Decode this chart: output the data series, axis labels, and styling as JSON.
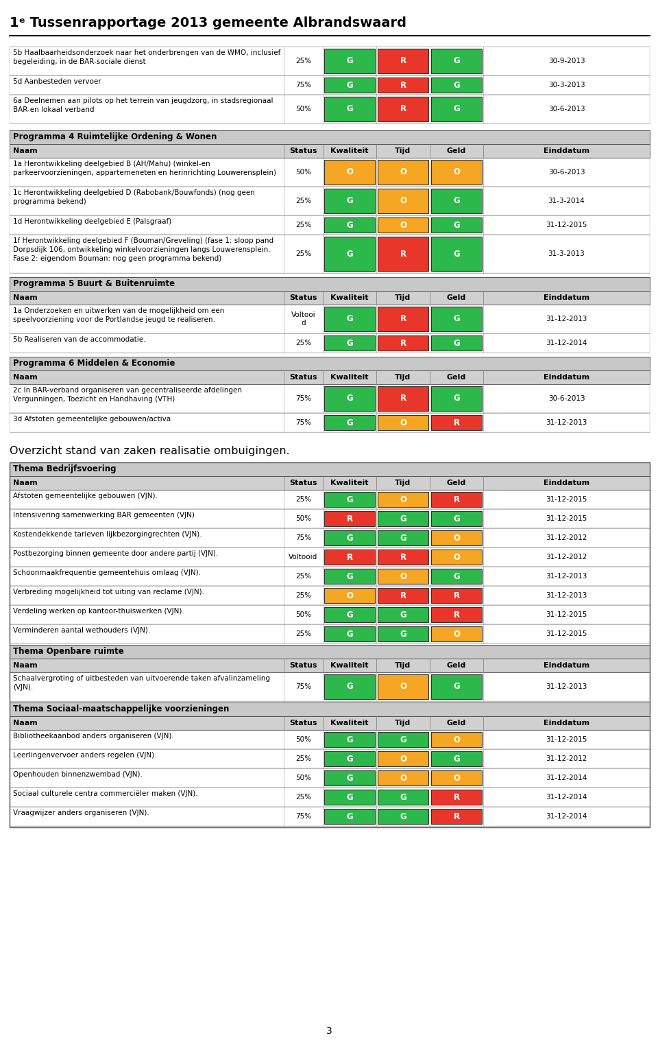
{
  "title": "1ᵉ Tussenrapportage 2013 gemeente Albrandswaard",
  "page_bg": "#ffffff",
  "green": "#2db84b",
  "red": "#e8372a",
  "orange": "#f5a623",
  "gray_section": "#c8c8c8",
  "gray_header_row": "#d0d0d0",
  "intro_rows": [
    {
      "name": "5b Haalbaarheidsonderzoek naar het onderbrengen van de WMO, inclusief\nbegeleiding, in de BAR-sociale dienst",
      "status": "25%",
      "k": "G",
      "t": "R",
      "g": "G",
      "date": "30-9-2013",
      "kc": "#2db84b",
      "tc": "#e8372a",
      "gc": "#2db84b"
    },
    {
      "name": "5d Aanbesteden vervoer",
      "status": "75%",
      "k": "G",
      "t": "R",
      "g": "G",
      "date": "30-3-2013",
      "kc": "#2db84b",
      "tc": "#e8372a",
      "gc": "#2db84b"
    },
    {
      "name": "6a Deelnemen aan pilots op het terrein van jeugdzorg, in stadsregionaal\nBAR-en lokaal verband",
      "status": "50%",
      "k": "G",
      "t": "R",
      "g": "G",
      "date": "30-6-2013",
      "kc": "#2db84b",
      "tc": "#e8372a",
      "gc": "#2db84b"
    }
  ],
  "programs": [
    {
      "title": "Programma 4 Ruimtelijke Ordening & Wonen",
      "rows": [
        {
          "name": "1a Herontwikkeling deelgebied B (AH/Mahu) (winkel-en\nparkeervoorzieningen, appartemeneten en herinrichting Louwerensplein)",
          "status": "50%",
          "k": "O",
          "t": "O",
          "g": "O",
          "date": "30-6-2013",
          "kc": "#f5a623",
          "tc": "#f5a623",
          "gc": "#f5a623"
        },
        {
          "name": "1c Herontwikkeling deelgebied D (Rabobank/Bouwfonds) (nog geen\nprogramma bekend)",
          "status": "25%",
          "k": "G",
          "t": "O",
          "g": "G",
          "date": "31-3-2014",
          "kc": "#2db84b",
          "tc": "#f5a623",
          "gc": "#2db84b"
        },
        {
          "name": "1d Herontwikkeling deelgebied E (Palsgraaf)",
          "status": "25%",
          "k": "G",
          "t": "O",
          "g": "G",
          "date": "31-12-2015",
          "kc": "#2db84b",
          "tc": "#f5a623",
          "gc": "#2db84b"
        },
        {
          "name": "1f Herontwikkeling deelgebied F (Bouman/Greveling) (fase 1: sloop pand\nDorpsdijk 106, ontwikkeling winkelvoorzieningen langs Louwerensplein.\nFase 2: eigendom Bouman: nog geen programma bekend)",
          "status": "25%",
          "k": "G",
          "t": "R",
          "g": "G",
          "date": "31-3-2013",
          "kc": "#2db84b",
          "tc": "#e8372a",
          "gc": "#2db84b"
        }
      ]
    },
    {
      "title": "Programma 5 Buurt & Buitenruimte",
      "rows": [
        {
          "name": "1a Onderzoeken en uitwerken van de mogelijkheid om een\nspeelvoorziening voor de Portlandse jeugd te realiseren.",
          "status": "Voltooi\nd",
          "k": "G",
          "t": "R",
          "g": "G",
          "date": "31-12-2013",
          "kc": "#2db84b",
          "tc": "#e8372a",
          "gc": "#2db84b"
        },
        {
          "name": "5b Realiseren van de accommodatie.",
          "status": "25%",
          "k": "G",
          "t": "R",
          "g": "G",
          "date": "31-12-2014",
          "kc": "#2db84b",
          "tc": "#e8372a",
          "gc": "#2db84b"
        }
      ]
    },
    {
      "title": "Programma 6 Middelen & Economie",
      "rows": [
        {
          "name": "2c In BAR-verband organiseren van gecentraliseerde afdelingen\nVergunningen, Toezicht en Handhaving (VTH)",
          "status": "75%",
          "k": "G",
          "t": "R",
          "g": "G",
          "date": "30-6-2013",
          "kc": "#2db84b",
          "tc": "#e8372a",
          "gc": "#2db84b"
        },
        {
          "name": "3d Afstoten gemeentelijke gebouwen/activa",
          "status": "75%",
          "k": "G",
          "t": "O",
          "g": "R",
          "date": "31-12-2013",
          "kc": "#2db84b",
          "tc": "#f5a623",
          "gc": "#e8372a"
        }
      ]
    }
  ],
  "ombuigingen_title": "Overzicht stand van zaken realisatie ombuigingen.",
  "themas": [
    {
      "title": "Thema Bedrijfsvoering",
      "rows": [
        {
          "name": "Afstoten gemeentelijke gebouwen (VJN).",
          "status": "25%",
          "k": "G",
          "t": "O",
          "g": "R",
          "date": "31-12-2015",
          "kc": "#2db84b",
          "tc": "#f5a623",
          "gc": "#e8372a"
        },
        {
          "name": "Intensivering samenwerking BAR gemeenten (VJN)",
          "status": "50%",
          "k": "R",
          "t": "G",
          "g": "G",
          "date": "31-12-2015",
          "kc": "#e8372a",
          "tc": "#2db84b",
          "gc": "#2db84b"
        },
        {
          "name": "Kostendekkende tarieven lijkbezorgingrechten (VJN).",
          "status": "75%",
          "k": "G",
          "t": "G",
          "g": "O",
          "date": "31-12-2012",
          "kc": "#2db84b",
          "tc": "#2db84b",
          "gc": "#f5a623"
        },
        {
          "name": "Postbezorging binnen gemeente door andere partij (VJN).",
          "status": "Voltooid",
          "k": "R",
          "t": "R",
          "g": "O",
          "date": "31-12-2012",
          "kc": "#e8372a",
          "tc": "#e8372a",
          "gc": "#f5a623"
        },
        {
          "name": "Schoonmaakfrequentie gemeentehuis omlaag (VJN).",
          "status": "25%",
          "k": "G",
          "t": "O",
          "g": "G",
          "date": "31-12-2013",
          "kc": "#2db84b",
          "tc": "#f5a623",
          "gc": "#2db84b"
        },
        {
          "name": "Verbreding mogelijkheid tot uiting van reclame (VJN).",
          "status": "25%",
          "k": "O",
          "t": "R",
          "g": "R",
          "date": "31-12-2013",
          "kc": "#f5a623",
          "tc": "#e8372a",
          "gc": "#e8372a"
        },
        {
          "name": "Verdeling werken op kantoor-thuiswerken (VJN).",
          "status": "50%",
          "k": "G",
          "t": "G",
          "g": "R",
          "date": "31-12-2015",
          "kc": "#2db84b",
          "tc": "#2db84b",
          "gc": "#e8372a"
        },
        {
          "name": "Verminderen aantal wethouders (VJN).",
          "status": "25%",
          "k": "G",
          "t": "G",
          "g": "O",
          "date": "31-12-2015",
          "kc": "#2db84b",
          "tc": "#2db84b",
          "gc": "#f5a623"
        }
      ]
    },
    {
      "title": "Thema Openbare ruimte",
      "rows": [
        {
          "name": "Schaalvergroting of uitbesteden van uitvoerende taken afvalinzameling\n(VJN).",
          "status": "75%",
          "k": "G",
          "t": "O",
          "g": "G",
          "date": "31-12-2013",
          "kc": "#2db84b",
          "tc": "#f5a623",
          "gc": "#2db84b"
        }
      ]
    },
    {
      "title": "Thema Sociaal-maatschappelijke voorzieningen",
      "rows": [
        {
          "name": "Bibliotheekaanbod anders organiseren (VJN).",
          "status": "50%",
          "k": "G",
          "t": "G",
          "g": "O",
          "date": "31-12-2015",
          "kc": "#2db84b",
          "tc": "#2db84b",
          "gc": "#f5a623"
        },
        {
          "name": "Leerlingenvervoer anders regelen (VJN).",
          "status": "25%",
          "k": "G",
          "t": "O",
          "g": "G",
          "date": "31-12-2012",
          "kc": "#2db84b",
          "tc": "#f5a623",
          "gc": "#2db84b"
        },
        {
          "name": "Openhouden binnenzwembad (VJN).",
          "status": "50%",
          "k": "G",
          "t": "O",
          "g": "O",
          "date": "31-12-2014",
          "kc": "#2db84b",
          "tc": "#f5a623",
          "gc": "#f5a623"
        },
        {
          "name": "Sociaal culturele centra commerciëler maken (VJN).",
          "status": "25%",
          "k": "G",
          "t": "G",
          "g": "R",
          "date": "31-12-2014",
          "kc": "#2db84b",
          "tc": "#2db84b",
          "gc": "#e8372a"
        },
        {
          "name": "Vraagwijzer anders organiseren (VJN).",
          "status": "75%",
          "k": "G",
          "t": "G",
          "g": "R",
          "date": "31-12-2014",
          "kc": "#2db84b",
          "tc": "#2db84b",
          "gc": "#e8372a"
        }
      ]
    }
  ]
}
